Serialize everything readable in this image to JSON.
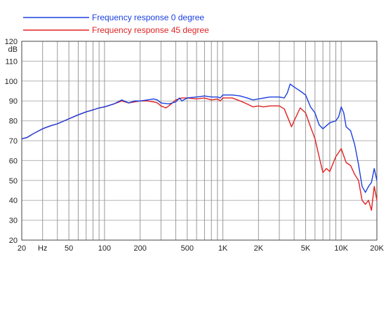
{
  "chart_data": {
    "type": "line",
    "title": "",
    "xlabel": "",
    "ylabel": "",
    "ylabel_unit": "dB",
    "x_scale": "log",
    "xlim": [
      20,
      20000
    ],
    "ylim": [
      20,
      120
    ],
    "grid": true,
    "legend_position": "top-left",
    "x_tick_labels": [
      {
        "value": 20,
        "label": "20"
      },
      {
        "value": 50,
        "label": "50"
      },
      {
        "value": 100,
        "label": "100"
      },
      {
        "value": 200,
        "label": "200"
      },
      {
        "value": 500,
        "label": "500"
      },
      {
        "value": 1000,
        "label": "1K"
      },
      {
        "value": 2000,
        "label": "2K"
      },
      {
        "value": 5000,
        "label": "5K"
      },
      {
        "value": 10000,
        "label": "10K"
      },
      {
        "value": 20000,
        "label": "20K"
      }
    ],
    "x_unit_label": {
      "value": 30,
      "label": "Hz"
    },
    "y_ticks": [
      20,
      30,
      40,
      50,
      60,
      70,
      80,
      90,
      100,
      110,
      120
    ],
    "series": [
      {
        "name": "Frequency response 0 degree",
        "color": "#1a3fe0",
        "points": [
          [
            20,
            71
          ],
          [
            22,
            71.5
          ],
          [
            25,
            73.5
          ],
          [
            30,
            76
          ],
          [
            35,
            77.5
          ],
          [
            40,
            78.5
          ],
          [
            50,
            81
          ],
          [
            60,
            83
          ],
          [
            70,
            84.5
          ],
          [
            80,
            85.5
          ],
          [
            90,
            86.5
          ],
          [
            100,
            87
          ],
          [
            120,
            88.5
          ],
          [
            140,
            90.5
          ],
          [
            160,
            89
          ],
          [
            180,
            90
          ],
          [
            200,
            90
          ],
          [
            230,
            90.5
          ],
          [
            260,
            91
          ],
          [
            280,
            90.5
          ],
          [
            300,
            89
          ],
          [
            350,
            88.5
          ],
          [
            400,
            89.5
          ],
          [
            430,
            91.5
          ],
          [
            450,
            90
          ],
          [
            500,
            91.5
          ],
          [
            600,
            92
          ],
          [
            700,
            92.5
          ],
          [
            800,
            92
          ],
          [
            900,
            92
          ],
          [
            950,
            91.5
          ],
          [
            1000,
            93
          ],
          [
            1200,
            93
          ],
          [
            1400,
            92.5
          ],
          [
            1600,
            91.5
          ],
          [
            1800,
            90.5
          ],
          [
            2000,
            91
          ],
          [
            2500,
            92
          ],
          [
            3000,
            92
          ],
          [
            3300,
            91.5
          ],
          [
            3500,
            94
          ],
          [
            3700,
            98.5
          ],
          [
            4000,
            97
          ],
          [
            4500,
            95
          ],
          [
            5000,
            93
          ],
          [
            5500,
            87
          ],
          [
            6000,
            84
          ],
          [
            6500,
            78
          ],
          [
            7000,
            76
          ],
          [
            8000,
            79
          ],
          [
            9000,
            80
          ],
          [
            9500,
            82
          ],
          [
            10000,
            87
          ],
          [
            10500,
            84
          ],
          [
            11000,
            77
          ],
          [
            12000,
            75
          ],
          [
            13000,
            68
          ],
          [
            14000,
            58
          ],
          [
            15000,
            47
          ],
          [
            16000,
            44
          ],
          [
            17000,
            47
          ],
          [
            18000,
            49
          ],
          [
            19000,
            56
          ],
          [
            20000,
            50
          ]
        ]
      },
      {
        "name": "Frequency response 45 degree",
        "color": "#e02222",
        "points": [
          [
            20,
            71
          ],
          [
            22,
            71.5
          ],
          [
            25,
            73.5
          ],
          [
            30,
            76
          ],
          [
            35,
            77.5
          ],
          [
            40,
            78.5
          ],
          [
            50,
            81
          ],
          [
            60,
            83
          ],
          [
            70,
            84.5
          ],
          [
            80,
            85.5
          ],
          [
            90,
            86.5
          ],
          [
            100,
            87
          ],
          [
            120,
            88.5
          ],
          [
            140,
            90
          ],
          [
            160,
            89
          ],
          [
            180,
            89.5
          ],
          [
            200,
            90
          ],
          [
            230,
            90
          ],
          [
            260,
            89.5
          ],
          [
            280,
            89
          ],
          [
            300,
            87.5
          ],
          [
            330,
            86.5
          ],
          [
            350,
            87.5
          ],
          [
            400,
            90.5
          ],
          [
            450,
            91.5
          ],
          [
            500,
            91.5
          ],
          [
            600,
            91
          ],
          [
            700,
            91.5
          ],
          [
            800,
            90.5
          ],
          [
            900,
            91
          ],
          [
            950,
            90
          ],
          [
            1000,
            91.5
          ],
          [
            1200,
            91.5
          ],
          [
            1400,
            90
          ],
          [
            1600,
            88.5
          ],
          [
            1800,
            87
          ],
          [
            2000,
            87.5
          ],
          [
            2200,
            87
          ],
          [
            2500,
            87.5
          ],
          [
            3000,
            87.5
          ],
          [
            3300,
            86
          ],
          [
            3600,
            80.5
          ],
          [
            3800,
            77
          ],
          [
            4000,
            80
          ],
          [
            4500,
            86.5
          ],
          [
            5000,
            84
          ],
          [
            5500,
            77
          ],
          [
            6000,
            71
          ],
          [
            6500,
            62
          ],
          [
            7000,
            54
          ],
          [
            7500,
            56
          ],
          [
            8000,
            54.5
          ],
          [
            9000,
            62
          ],
          [
            10000,
            66
          ],
          [
            11000,
            59
          ],
          [
            12000,
            57.5
          ],
          [
            13000,
            53
          ],
          [
            14000,
            50
          ],
          [
            15000,
            40
          ],
          [
            16000,
            38
          ],
          [
            17000,
            40
          ],
          [
            18000,
            35
          ],
          [
            19000,
            47
          ],
          [
            20000,
            40
          ]
        ]
      }
    ]
  }
}
